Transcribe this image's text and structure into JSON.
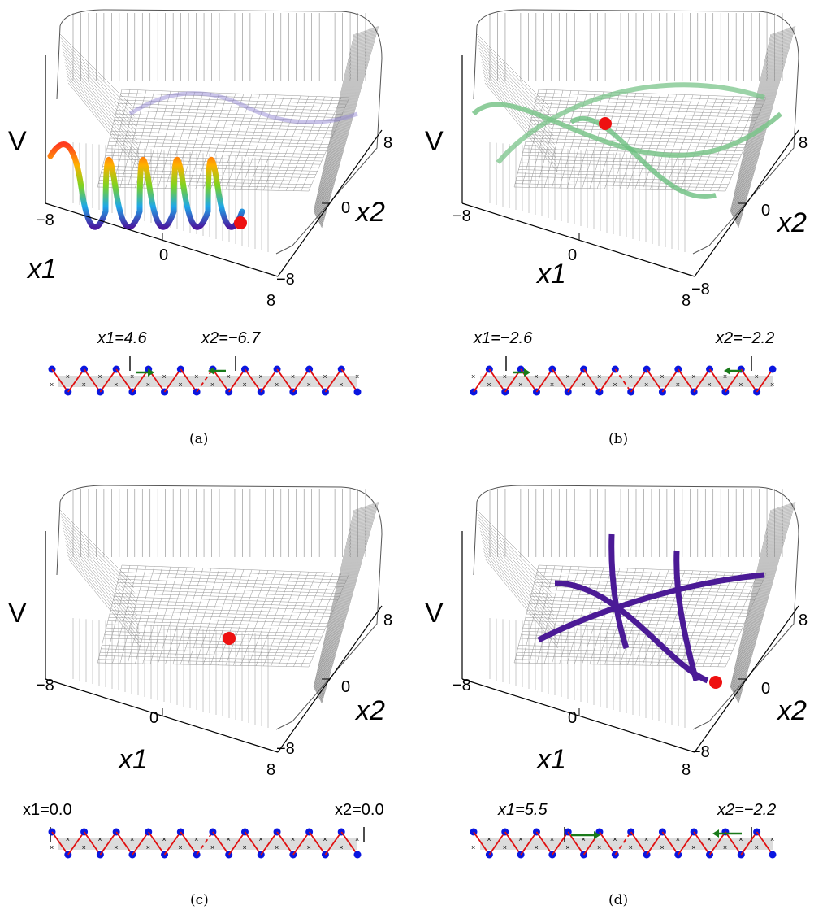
{
  "figure": {
    "panels": [
      {
        "id": "a",
        "caption": "(a)",
        "axes": {
          "v_label": "V",
          "x1_label": "x1",
          "x2_label": "x2",
          "x1_ticks": [
            "−8",
            "0",
            "8"
          ],
          "x2_ticks": [
            "−8",
            "0",
            "8"
          ]
        },
        "annotation_left": "x1=4.6",
        "annotation_right": "x2=−6.7",
        "chain": {
          "up_start": true,
          "n_left": 10,
          "n_right": 10,
          "arrows": "small"
        }
      },
      {
        "id": "b",
        "caption": "(b)",
        "axes": {
          "v_label": "V",
          "x1_label": "x1",
          "x2_label": "x2",
          "x1_ticks": [
            "−8",
            "0",
            "8"
          ],
          "x2_ticks": [
            "−8",
            "0",
            "8"
          ]
        },
        "annotation_left": "x1=−2.6",
        "annotation_right": "x2=−2.2",
        "chain": {
          "up_start": false,
          "n_left": 10,
          "n_right": 10,
          "arrows": "small"
        }
      },
      {
        "id": "c",
        "caption": "(c)",
        "axes": {
          "v_label": "V",
          "x1_label": "x1",
          "x2_label": "x2",
          "x1_ticks": [
            "−8",
            "0",
            "8"
          ],
          "x2_ticks": [
            "−8",
            "0",
            "8"
          ]
        },
        "annotation_left": "x1=0.0",
        "annotation_right": "x2=0.0",
        "chain": {
          "up_start": true,
          "n_left": 10,
          "n_right": 10,
          "arrows": "none"
        }
      },
      {
        "id": "d",
        "caption": "(d)",
        "axes": {
          "v_label": "V",
          "x1_label": "x1",
          "x2_label": "x2",
          "x1_ticks": [
            "−8",
            "0",
            "8"
          ],
          "x2_ticks": [
            "−8",
            "0",
            "8"
          ]
        },
        "annotation_left": "x1=5.5",
        "annotation_right": "x2=−2.2",
        "chain": {
          "up_start": true,
          "n_left": 10,
          "n_right": 10,
          "arrows": "large"
        }
      }
    ]
  },
  "colors": {
    "mesh": "#8a8a8a",
    "bead": "#0a16e0",
    "bond": "#e01010",
    "arrow": "#1a7a1a",
    "ball": "#ee1111",
    "trail_d": "#4b1a96",
    "band": "#dcdcdc"
  }
}
